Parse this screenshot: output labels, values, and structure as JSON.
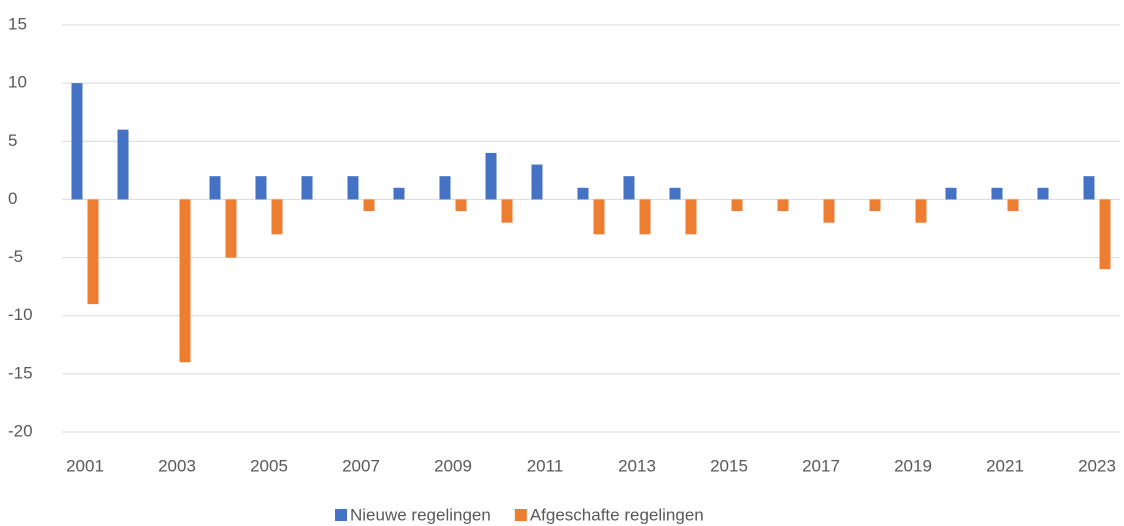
{
  "chart_data": {
    "type": "bar",
    "categories": [
      "2001",
      null,
      "2003",
      null,
      "2005",
      null,
      "2007",
      null,
      "2009",
      null,
      "2011",
      null,
      "2013",
      null,
      "2015",
      null,
      "2017",
      null,
      "2019",
      null,
      "2021",
      null,
      "2023"
    ],
    "series": [
      {
        "name": "Nieuwe regelingen",
        "color": "#4472c4",
        "values": [
          10,
          6,
          0,
          2,
          2,
          2,
          2,
          1,
          2,
          4,
          3,
          1,
          2,
          1,
          0,
          0,
          0,
          0,
          0,
          1,
          1,
          1,
          2
        ]
      },
      {
        "name": "Afgeschafte regelingen",
        "color": "#ed7d31",
        "values": [
          -9,
          0,
          -14,
          -5,
          -3,
          0,
          -1,
          0,
          -1,
          -2,
          0,
          -3,
          -3,
          -3,
          -1,
          -1,
          -2,
          -1,
          -2,
          0,
          -1,
          0,
          -6
        ]
      }
    ],
    "ylim": [
      -20,
      15
    ],
    "yticks": [
      -20,
      -15,
      -10,
      -5,
      0,
      5,
      10,
      15
    ],
    "grid": true,
    "legend": "bottom"
  }
}
